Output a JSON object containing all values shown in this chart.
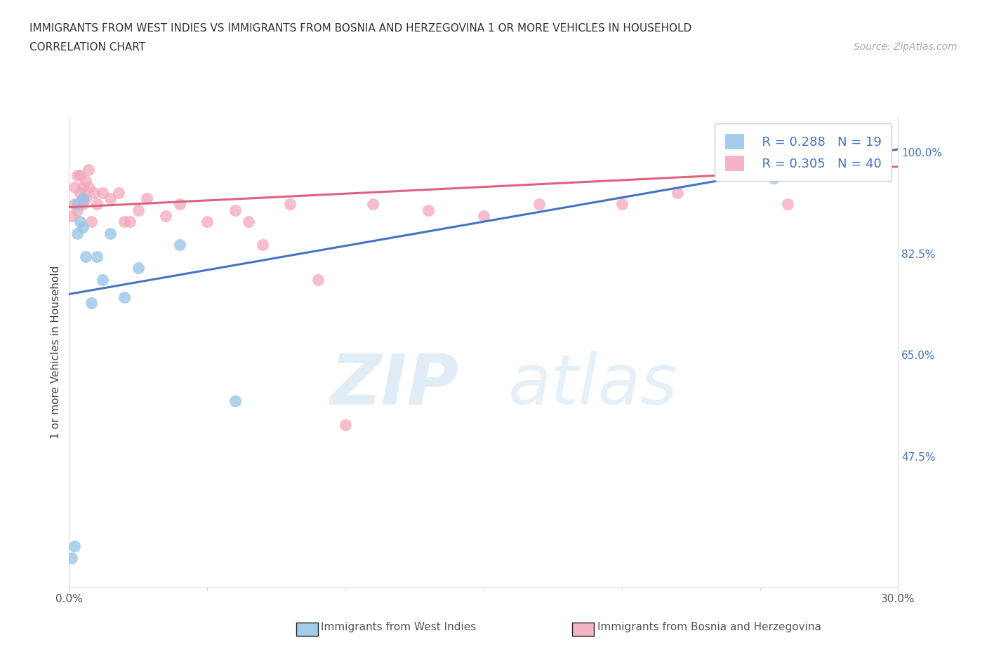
{
  "title_line1": "IMMIGRANTS FROM WEST INDIES VS IMMIGRANTS FROM BOSNIA AND HERZEGOVINA 1 OR MORE VEHICLES IN HOUSEHOLD",
  "title_line2": "CORRELATION CHART",
  "source_text": "Source: ZipAtlas.com",
  "ylabel": "1 or more Vehicles in Household",
  "xlim": [
    0.0,
    0.3
  ],
  "ylim": [
    0.25,
    1.06
  ],
  "xticks": [
    0.0,
    0.05,
    0.1,
    0.15,
    0.2,
    0.25,
    0.3
  ],
  "xticklabels": [
    "0.0%",
    "",
    "",
    "",
    "",
    "",
    "30.0%"
  ],
  "yticks_right": [
    0.475,
    0.65,
    0.825,
    1.0
  ],
  "yticklabels_right": [
    "47.5%",
    "65.0%",
    "82.5%",
    "100.0%"
  ],
  "grid_color": "#cccccc",
  "background_color": "#ffffff",
  "blue_color": "#93c4e8",
  "pink_color": "#f4a7b9",
  "blue_line_color": "#4472c4",
  "pink_line_color": "#e06080",
  "R_blue": 0.288,
  "N_blue": 19,
  "R_pink": 0.305,
  "N_pink": 40,
  "legend_label_blue": "Immigrants from West Indies",
  "legend_label_pink": "Immigrants from Bosnia and Herzegovina",
  "watermark_zip": "ZIP",
  "watermark_atlas": "atlas",
  "blue_scatter_x": [
    0.001,
    0.002,
    0.003,
    0.003,
    0.004,
    0.005,
    0.005,
    0.006,
    0.008,
    0.01,
    0.012,
    0.015,
    0.02,
    0.025,
    0.04,
    0.06,
    0.24,
    0.255,
    0.285
  ],
  "blue_scatter_y": [
    0.3,
    0.32,
    0.86,
    0.91,
    0.88,
    0.87,
    0.92,
    0.82,
    0.74,
    0.82,
    0.78,
    0.86,
    0.75,
    0.8,
    0.84,
    0.57,
    0.975,
    0.955,
    1.0
  ],
  "pink_scatter_x": [
    0.001,
    0.002,
    0.002,
    0.003,
    0.003,
    0.004,
    0.004,
    0.005,
    0.005,
    0.006,
    0.006,
    0.007,
    0.007,
    0.008,
    0.009,
    0.01,
    0.012,
    0.015,
    0.018,
    0.02,
    0.022,
    0.025,
    0.028,
    0.035,
    0.04,
    0.05,
    0.06,
    0.065,
    0.07,
    0.08,
    0.09,
    0.1,
    0.11,
    0.13,
    0.15,
    0.17,
    0.2,
    0.22,
    0.26,
    0.285
  ],
  "pink_scatter_y": [
    0.89,
    0.91,
    0.94,
    0.9,
    0.96,
    0.93,
    0.96,
    0.91,
    0.94,
    0.92,
    0.95,
    0.94,
    0.97,
    0.88,
    0.93,
    0.91,
    0.93,
    0.92,
    0.93,
    0.88,
    0.88,
    0.9,
    0.92,
    0.89,
    0.91,
    0.88,
    0.9,
    0.88,
    0.84,
    0.91,
    0.78,
    0.53,
    0.91,
    0.9,
    0.89,
    0.91,
    0.91,
    0.93,
    0.91,
    1.0
  ],
  "blue_line_x": [
    0.0,
    0.3
  ],
  "blue_line_y": [
    0.755,
    1.005
  ],
  "pink_line_x": [
    0.0,
    0.3
  ],
  "pink_line_y": [
    0.905,
    0.975
  ],
  "dot_size": 150,
  "tick_color": "#4472c4"
}
